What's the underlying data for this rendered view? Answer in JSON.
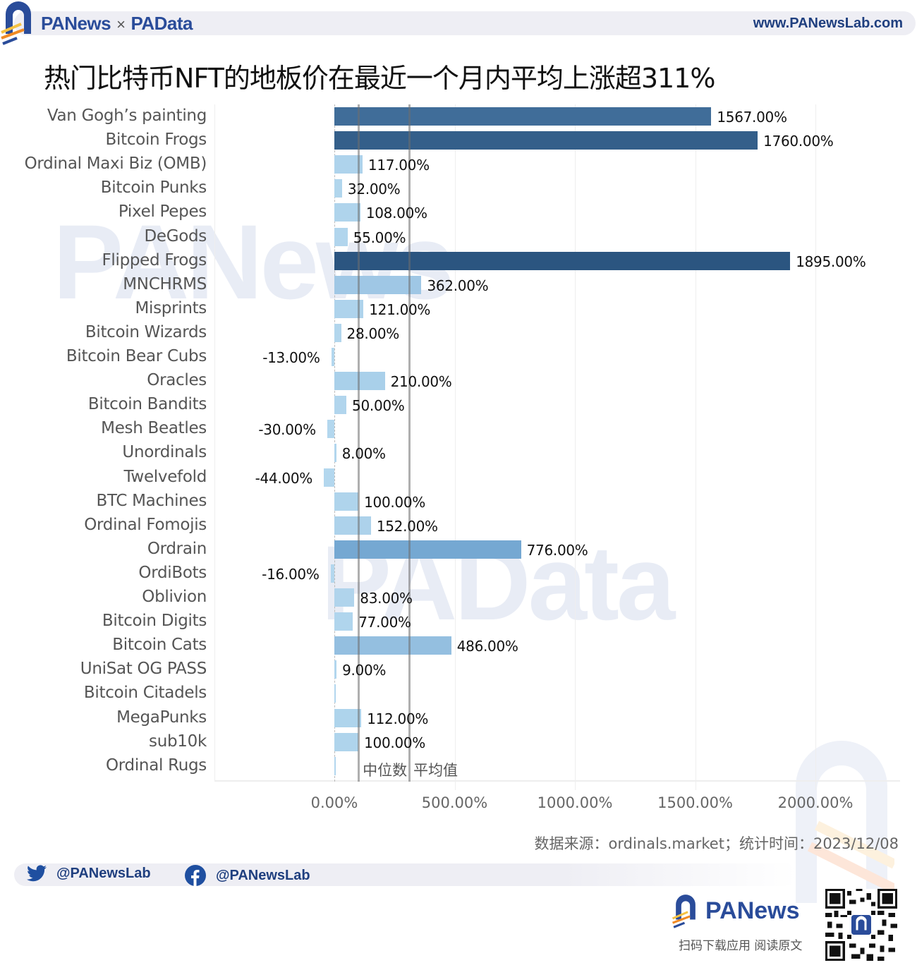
{
  "header": {
    "brand_left": "PANews",
    "brand_sep": "×",
    "brand_right": "PAData",
    "site_url": "www.PANewsLab.com"
  },
  "title": "热门比特币NFT的地板价在最近一个月内平均上涨超311%",
  "watermarks": {
    "top": "PANews",
    "bottom": "PAData"
  },
  "chart_data": {
    "type": "bar",
    "orientation": "horizontal",
    "title": "热门比特币NFT的地板价在最近一个月内平均上涨超311%",
    "xlabel": "",
    "ylabel": "",
    "xlim": [
      -500,
      2350
    ],
    "x_ticks": [
      "0.00%",
      "500.00%",
      "1000.00%",
      "1500.00%",
      "2000.00%"
    ],
    "x_tick_values": [
      0,
      500,
      1000,
      1500,
      2000
    ],
    "grid": true,
    "categories": [
      "Van Gogh’s painting",
      "Bitcoin Frogs",
      "Ordinal Maxi Biz (OMB)",
      "Bitcoin Punks",
      "Pixel Pepes",
      "DeGods",
      "Flipped Frogs",
      "MNCHRMS",
      "Misprints",
      "Bitcoin Wizards",
      "Bitcoin Bear Cubs",
      "Oracles",
      "Bitcoin Bandits",
      "Mesh Beatles",
      "Unordinals",
      "Twelvefold",
      "BTC Machines",
      "Ordinal Fomojis",
      "Ordrain",
      "OrdiBots",
      "Oblivion",
      "Bitcoin Digits",
      "Bitcoin Cats",
      "UniSat OG PASS",
      "Bitcoin Citadels",
      "MegaPunks",
      "sub10k",
      "Ordinal Rugs"
    ],
    "values": [
      1567,
      1760,
      117,
      32,
      108,
      55,
      1895,
      362,
      121,
      28,
      -13,
      210,
      50,
      -30,
      8,
      -44,
      100,
      152,
      776,
      -16,
      83,
      77,
      486,
      9,
      0,
      112,
      100,
      0
    ],
    "value_labels": [
      "1567.00%",
      "1760.00%",
      "117.00%",
      "32.00%",
      "108.00%",
      "55.00%",
      "1895.00%",
      "362.00%",
      "121.00%",
      "28.00%",
      "-13.00%",
      "210.00%",
      "50.00%",
      "-30.00%",
      "8.00%",
      "-44.00%",
      "100.00%",
      "152.00%",
      "776.00%",
      "-16.00%",
      "83.00%",
      "77.00%",
      "486.00%",
      "9.00%",
      "",
      "112.00%",
      "100.00%",
      ""
    ],
    "reference_lines": [
      {
        "name": "中位数",
        "value": 100
      },
      {
        "name": "平均值",
        "value": 311
      }
    ],
    "color_scale": {
      "low": "#b3d7ee",
      "mid": "#6fa3cf",
      "high": "#2b5580"
    }
  },
  "source": "数据来源：ordinals.market；统计时间：2023/12/08",
  "footer": {
    "twitter_handle": "@PANewsLab",
    "facebook_handle": "@PANewsLab",
    "brand": "PANews",
    "tagline": "扫码下载应用  阅读原文"
  },
  "colors": {
    "brand_blue": "#2a4c9a",
    "accent_orange": "#f08a24",
    "accent_yellow": "#f5c242",
    "accent_red": "#e2502a"
  }
}
